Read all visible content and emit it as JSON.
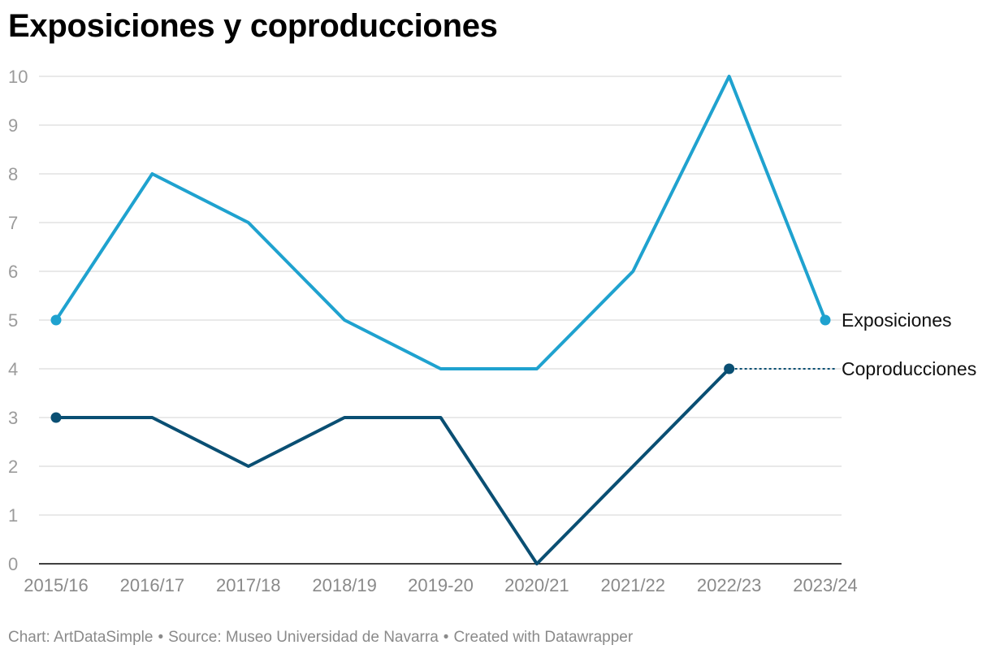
{
  "title": "Exposiciones y coproducciones",
  "footer": {
    "chart_by": "Chart: ArtDataSimple",
    "source": "Source: Museo Universidad de Navarra",
    "created_with": "Created with Datawrapper",
    "separator": "•"
  },
  "colors": {
    "exposiciones": "#1fa2cf",
    "coproducciones": "#0a4f73",
    "grid": "#e2e2e2",
    "tick_label": "#9b9b9b",
    "axis": "#000000"
  },
  "chart_data": {
    "type": "line",
    "title": "Exposiciones y coproducciones",
    "xlabel": "",
    "ylabel": "",
    "categories": [
      "2015/16",
      "2016/17",
      "2017/18",
      "2018/19",
      "2019-20",
      "2020/21",
      "2021/22",
      "2022/23",
      "2023/24"
    ],
    "ylim": [
      0,
      10
    ],
    "yticks": [
      0,
      1,
      2,
      3,
      4,
      5,
      6,
      7,
      8,
      9,
      10
    ],
    "grid": true,
    "legend": "direct labels at line ends",
    "series": [
      {
        "name": "Exposiciones",
        "values": [
          5,
          8,
          7,
          5,
          4,
          4,
          6,
          10,
          5
        ]
      },
      {
        "name": "Coproducciones",
        "values": [
          3,
          3,
          2,
          3,
          3,
          0,
          2,
          4,
          null
        ]
      }
    ]
  }
}
